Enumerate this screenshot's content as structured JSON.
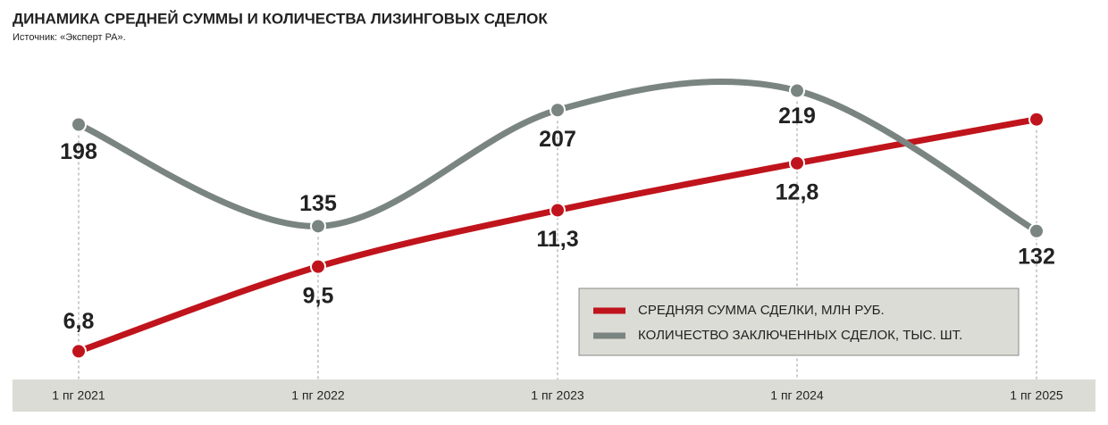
{
  "chart_data": {
    "type": "line",
    "title": "ДИНАМИКА СРЕДНЕЙ СУММЫ И КОЛИЧЕСТВА ЛИЗИНГОВЫХ СДЕЛОК",
    "subtitle": "Источник: «Эксперт РА».",
    "categories": [
      "1 пг 2021",
      "1 пг 2022",
      "1 пг 2023",
      "1 пг 2024",
      "1 пг 2025"
    ],
    "series": [
      {
        "name": "СРЕДНЯЯ СУММА СДЕЛКИ, МЛН РУБ.",
        "color": "#c0141c",
        "values": [
          6.8,
          9.5,
          11.3,
          12.8,
          14.2
        ],
        "value_labels": [
          "6,8",
          "9,5",
          "11,3",
          "12,8",
          null
        ]
      },
      {
        "name": "КОЛИЧЕСТВО ЗАКЛЮЧЕННЫХ СДЕЛОК, ТЫС. ШТ.",
        "color": "#7a8581",
        "values": [
          198,
          135,
          207,
          219,
          132
        ],
        "axis": "y2"
      }
    ],
    "ylim": [
      5.9,
      16.3
    ],
    "y2lim": [
      40,
      242
    ],
    "legend": "lower right"
  }
}
